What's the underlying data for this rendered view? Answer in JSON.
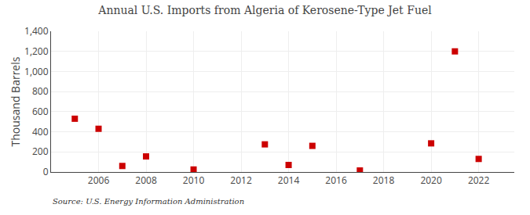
{
  "chart_data": {
    "type": "scatter",
    "title": "Annual U.S. Imports from Algeria of Kerosene-Type Jet Fuel",
    "ylabel": "Thousand Barrels",
    "annotation": "Source: U.S. Energy Information Administration",
    "x": [
      2005,
      2006,
      2007,
      2008,
      2010,
      2013,
      2014,
      2015,
      2017,
      2020,
      2021,
      2022
    ],
    "values": [
      530,
      430,
      60,
      155,
      25,
      275,
      70,
      260,
      15,
      285,
      1200,
      130
    ],
    "color": "#cc0000",
    "marker": "square",
    "xlim": [
      2004.0,
      2023.5
    ],
    "xticks": [
      2006,
      2008,
      2010,
      2012,
      2014,
      2016,
      2018,
      2020,
      2022
    ],
    "ylim": [
      0,
      1400
    ],
    "yticks": [
      0,
      200,
      400,
      600,
      800,
      {
        "value": 1000,
        "label": "1,000"
      },
      {
        "value": 1200,
        "label": "1,200"
      },
      {
        "value": 1400,
        "label": "1,400"
      }
    ],
    "grid": true
  }
}
